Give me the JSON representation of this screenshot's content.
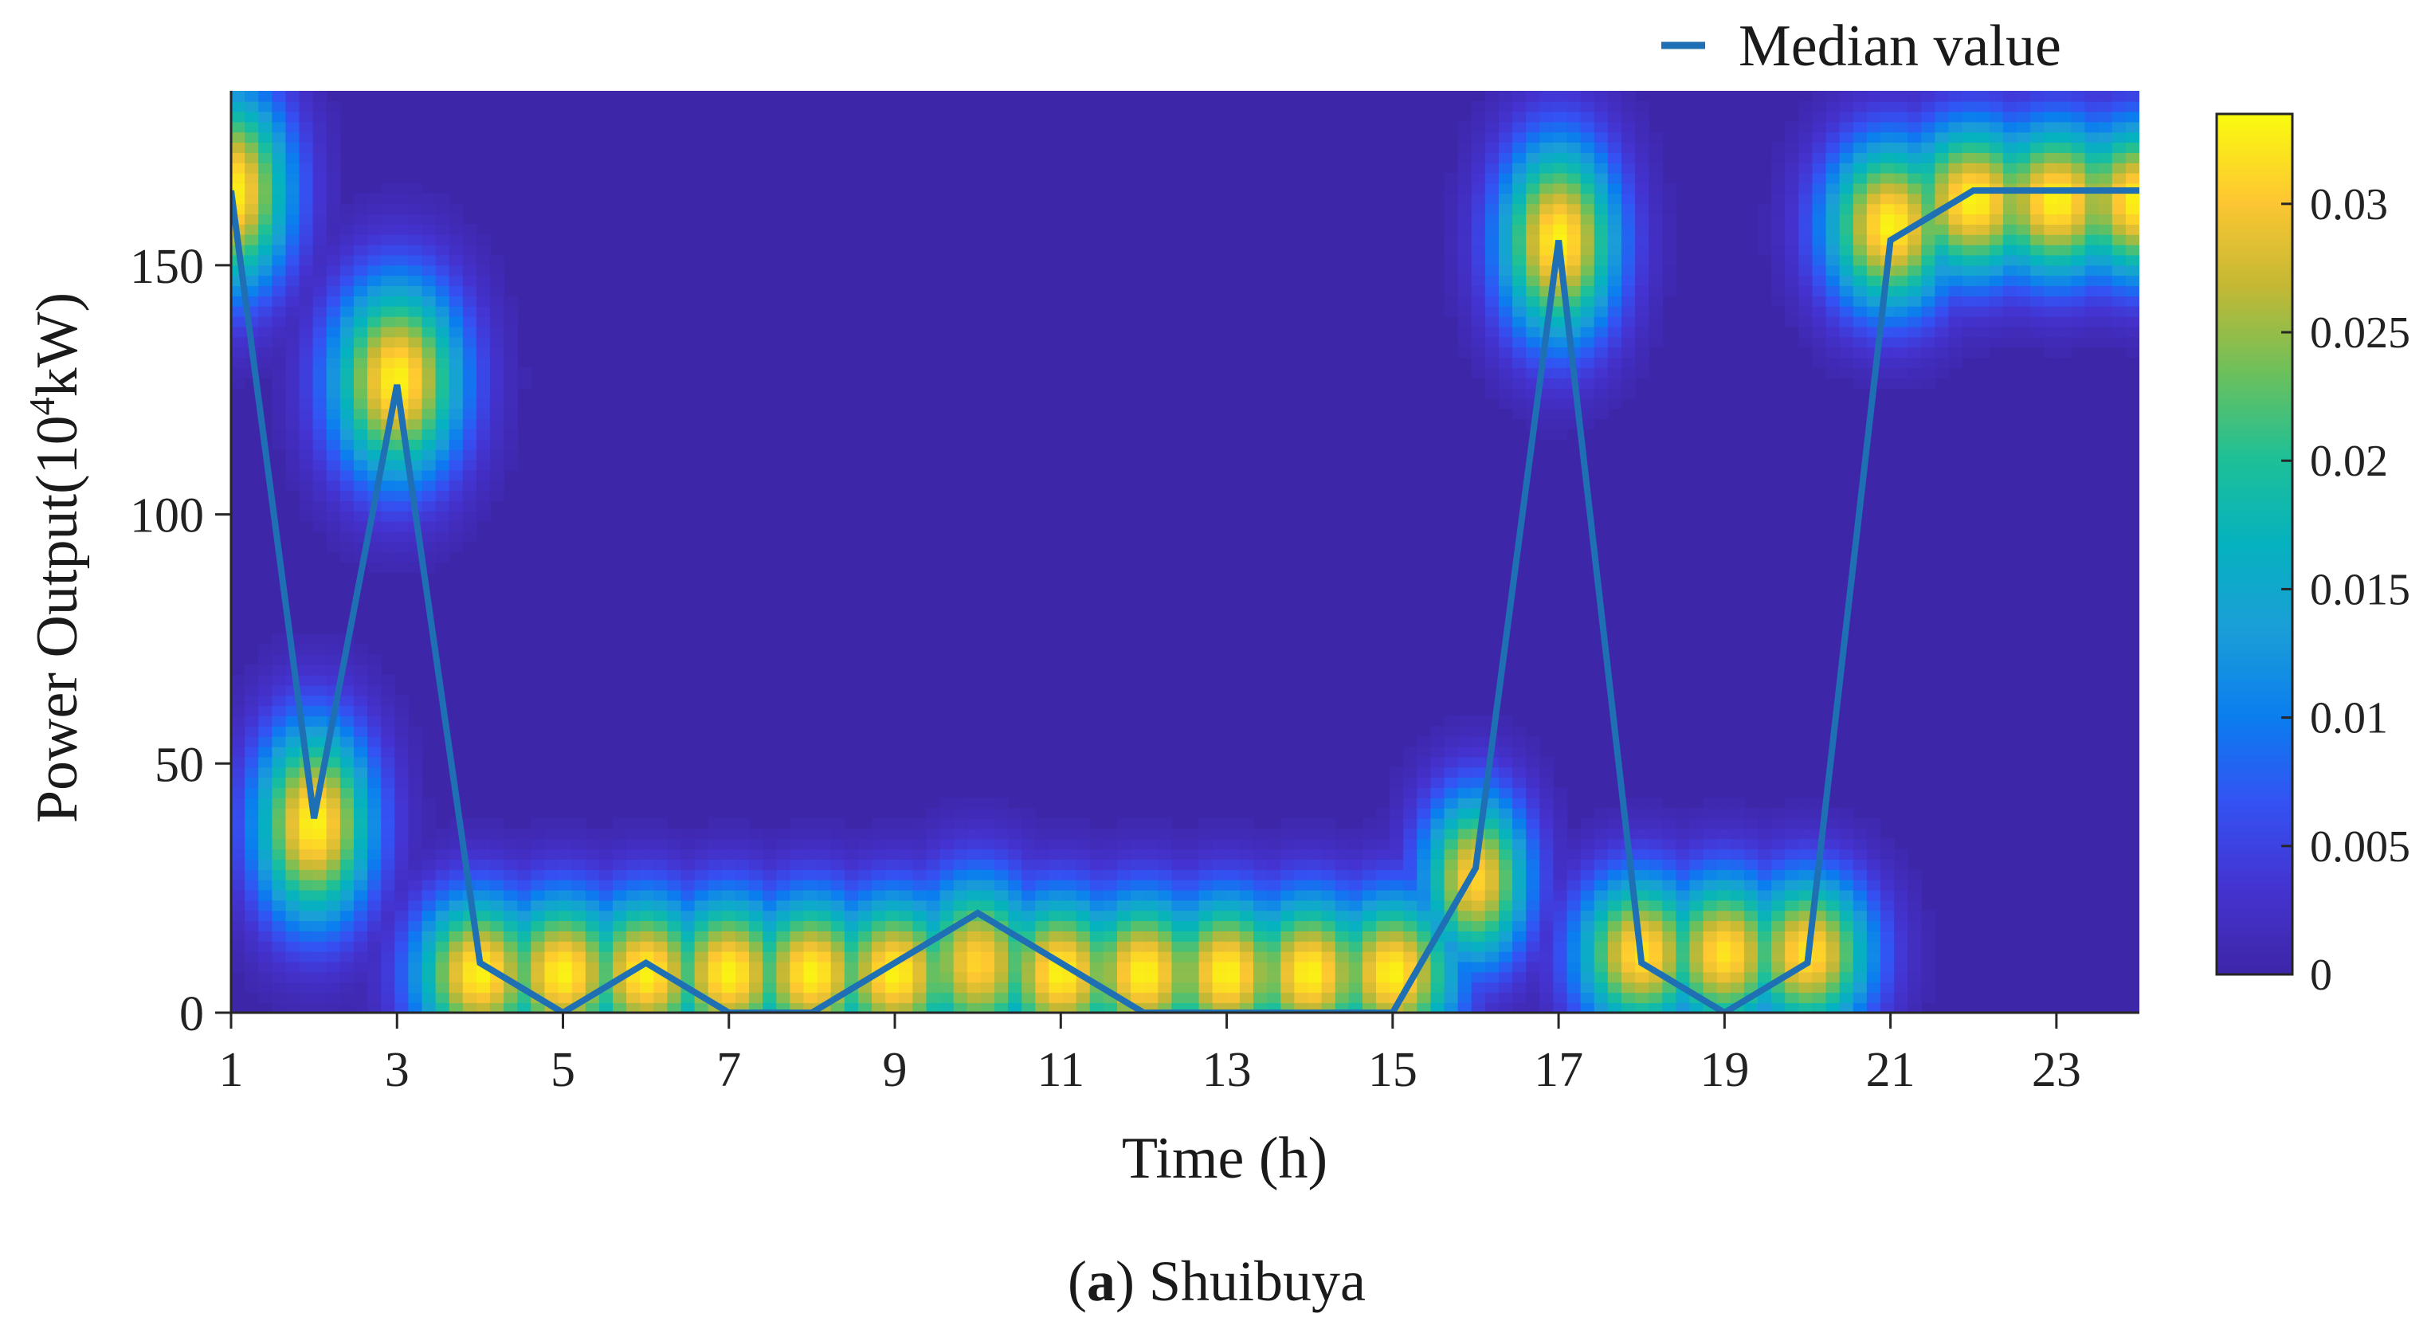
{
  "chart_data": {
    "type": "heatmap",
    "caption": {
      "label": "a",
      "station": "Shuibuya"
    },
    "xlabel": "Time  (h)",
    "ylabel": "Power Output(10",
    "ylabel_exp": "4",
    "ylabel_unit": "kW)",
    "xlim": [
      1,
      24
    ],
    "ylim": [
      0,
      185
    ],
    "xticks": [
      1,
      3,
      5,
      7,
      9,
      11,
      13,
      15,
      17,
      19,
      21,
      23
    ],
    "yticks": [
      0,
      50,
      100,
      150
    ],
    "colorbar": {
      "range": [
        0,
        0.0335
      ],
      "ticks": [
        0,
        0.005,
        0.01,
        0.015,
        0.02,
        0.025,
        0.03
      ],
      "tick_labels": [
        "0",
        "0.005",
        "0.01",
        "0.015",
        "0.02",
        "0.025",
        "0.03"
      ],
      "colormap": "parula"
    },
    "background_color": "#3e26a8",
    "density_blobs": [
      {
        "x": 1,
        "y": 165,
        "sx": 0.5,
        "sy": 14,
        "peak": 0.033
      },
      {
        "x": 2,
        "y": 38,
        "sx": 0.5,
        "sy": 14,
        "peak": 0.033
      },
      {
        "x": 3,
        "y": 127,
        "sx": 0.55,
        "sy": 14,
        "peak": 0.033
      },
      {
        "x": 4,
        "y": 8,
        "sx": 0.55,
        "sy": 11,
        "peak": 0.033
      },
      {
        "x": 5,
        "y": 8,
        "sx": 0.55,
        "sy": 11,
        "peak": 0.033
      },
      {
        "x": 6,
        "y": 8,
        "sx": 0.55,
        "sy": 11,
        "peak": 0.033
      },
      {
        "x": 7,
        "y": 8,
        "sx": 0.55,
        "sy": 11,
        "peak": 0.033
      },
      {
        "x": 8,
        "y": 8,
        "sx": 0.55,
        "sy": 11,
        "peak": 0.033
      },
      {
        "x": 9,
        "y": 8,
        "sx": 0.55,
        "sy": 11,
        "peak": 0.033
      },
      {
        "x": 10,
        "y": 10,
        "sx": 0.55,
        "sy": 12,
        "peak": 0.031
      },
      {
        "x": 11,
        "y": 8,
        "sx": 0.55,
        "sy": 11,
        "peak": 0.033
      },
      {
        "x": 12,
        "y": 8,
        "sx": 0.55,
        "sy": 11,
        "peak": 0.033
      },
      {
        "x": 13,
        "y": 8,
        "sx": 0.55,
        "sy": 11,
        "peak": 0.033
      },
      {
        "x": 14,
        "y": 8,
        "sx": 0.55,
        "sy": 11,
        "peak": 0.033
      },
      {
        "x": 15,
        "y": 8,
        "sx": 0.55,
        "sy": 11,
        "peak": 0.033
      },
      {
        "x": 16,
        "y": 27,
        "sx": 0.45,
        "sy": 12,
        "peak": 0.031
      },
      {
        "x": 17,
        "y": 155,
        "sx": 0.5,
        "sy": 14,
        "peak": 0.033
      },
      {
        "x": 18,
        "y": 12,
        "sx": 0.55,
        "sy": 11,
        "peak": 0.032
      },
      {
        "x": 19,
        "y": 12,
        "sx": 0.55,
        "sy": 11,
        "peak": 0.032
      },
      {
        "x": 20,
        "y": 12,
        "sx": 0.55,
        "sy": 11,
        "peak": 0.032
      },
      {
        "x": 21,
        "y": 158,
        "sx": 0.55,
        "sy": 12,
        "peak": 0.033
      },
      {
        "x": 22,
        "y": 163,
        "sx": 0.6,
        "sy": 11,
        "peak": 0.033
      },
      {
        "x": 23,
        "y": 163,
        "sx": 0.6,
        "sy": 11,
        "peak": 0.033
      },
      {
        "x": 24,
        "y": 163,
        "sx": 0.6,
        "sy": 11,
        "peak": 0.033
      }
    ],
    "series": [
      {
        "name": "Median value",
        "color": "#1f6fb4",
        "x": [
          1,
          2,
          3,
          4,
          5,
          6,
          7,
          8,
          9,
          10,
          11,
          12,
          13,
          14,
          15,
          16,
          17,
          18,
          19,
          20,
          21,
          22,
          23,
          24
        ],
        "y": [
          165,
          39,
          126,
          10,
          0,
          10,
          0,
          0,
          10,
          20,
          10,
          0,
          0,
          0,
          0,
          29,
          155,
          10,
          0,
          10,
          155,
          165,
          165,
          165
        ]
      }
    ],
    "legend_position": "top-right"
  }
}
